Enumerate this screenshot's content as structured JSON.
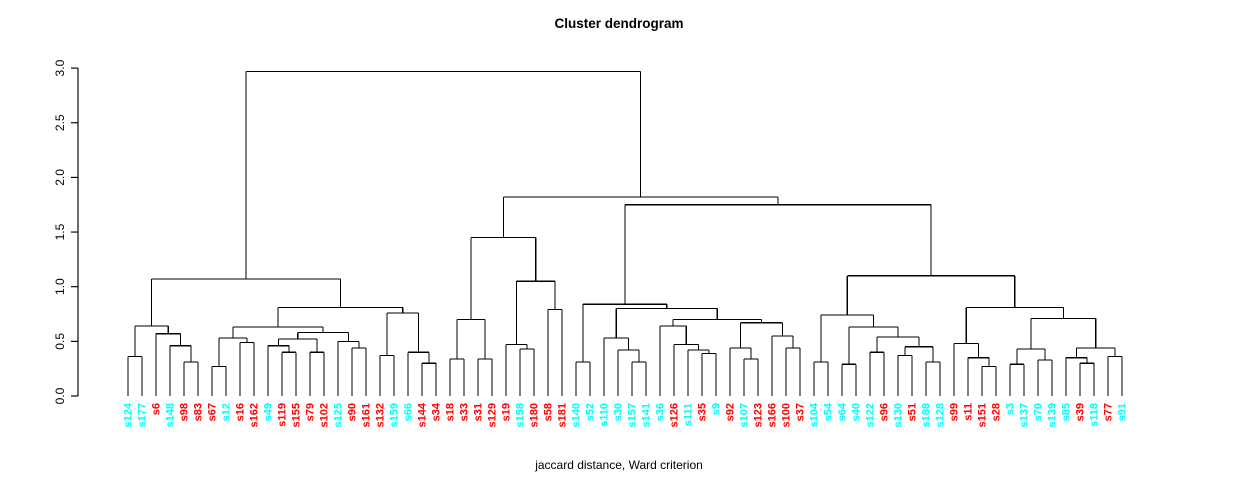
{
  "title": "Cluster dendrogram",
  "xlabel": "jaccard distance, Ward criterion",
  "colors": {
    "red": "#FF0000",
    "cyan": "#00FFFF",
    "line": "#000000",
    "background": "#FFFFFF"
  },
  "y_axis": {
    "tick_labels": [
      "0.0",
      "0.5",
      "1.0",
      "1.5",
      "2.0",
      "2.5",
      "3.0"
    ],
    "tick_values": [
      0,
      0.5,
      1.0,
      1.5,
      2.0,
      2.5,
      3.0
    ],
    "range": [
      0,
      3.0
    ]
  },
  "chart_data": {
    "type": "dendrogram",
    "title": "Cluster dendrogram",
    "xlabel": "jaccard distance, Ward criterion",
    "ylim": [
      0,
      3.0
    ],
    "root_height": 2.97,
    "grid": false,
    "leaf_count": 72,
    "leaves": [
      {
        "label": "s124",
        "color": "cyan"
      },
      {
        "label": "s177",
        "color": "cyan"
      },
      {
        "label": "s6",
        "color": "red"
      },
      {
        "label": "s148",
        "color": "cyan"
      },
      {
        "label": "s98",
        "color": "red"
      },
      {
        "label": "s83",
        "color": "red"
      },
      {
        "label": "s67",
        "color": "red"
      },
      {
        "label": "s12",
        "color": "cyan"
      },
      {
        "label": "s16",
        "color": "red"
      },
      {
        "label": "s162",
        "color": "red"
      },
      {
        "label": "s49",
        "color": "cyan"
      },
      {
        "label": "s119",
        "color": "red"
      },
      {
        "label": "s155",
        "color": "red"
      },
      {
        "label": "s79",
        "color": "red"
      },
      {
        "label": "s102",
        "color": "red"
      },
      {
        "label": "s125",
        "color": "cyan"
      },
      {
        "label": "s90",
        "color": "red"
      },
      {
        "label": "s161",
        "color": "red"
      },
      {
        "label": "s132",
        "color": "red"
      },
      {
        "label": "s159",
        "color": "cyan"
      },
      {
        "label": "s66",
        "color": "cyan"
      },
      {
        "label": "s144",
        "color": "red"
      },
      {
        "label": "s34",
        "color": "red"
      },
      {
        "label": "s18",
        "color": "red"
      },
      {
        "label": "s33",
        "color": "red"
      },
      {
        "label": "s31",
        "color": "red"
      },
      {
        "label": "s129",
        "color": "red"
      },
      {
        "label": "s19",
        "color": "red"
      },
      {
        "label": "s158",
        "color": "cyan"
      },
      {
        "label": "s180",
        "color": "red"
      },
      {
        "label": "s58",
        "color": "red"
      },
      {
        "label": "s181",
        "color": "red"
      },
      {
        "label": "s140",
        "color": "cyan"
      },
      {
        "label": "s52",
        "color": "cyan"
      },
      {
        "label": "s110",
        "color": "cyan"
      },
      {
        "label": "s30",
        "color": "cyan"
      },
      {
        "label": "s157",
        "color": "cyan"
      },
      {
        "label": "s141",
        "color": "cyan"
      },
      {
        "label": "s36",
        "color": "cyan"
      },
      {
        "label": "s126",
        "color": "red"
      },
      {
        "label": "s111",
        "color": "cyan"
      },
      {
        "label": "s35",
        "color": "red"
      },
      {
        "label": "s9",
        "color": "cyan"
      },
      {
        "label": "s92",
        "color": "red"
      },
      {
        "label": "s107",
        "color": "cyan"
      },
      {
        "label": "s123",
        "color": "red"
      },
      {
        "label": "s166",
        "color": "red"
      },
      {
        "label": "s100",
        "color": "red"
      },
      {
        "label": "s37",
        "color": "red"
      },
      {
        "label": "s104",
        "color": "cyan"
      },
      {
        "label": "s54",
        "color": "cyan"
      },
      {
        "label": "s64",
        "color": "cyan"
      },
      {
        "label": "s40",
        "color": "cyan"
      },
      {
        "label": "s122",
        "color": "cyan"
      },
      {
        "label": "s96",
        "color": "red"
      },
      {
        "label": "s130",
        "color": "cyan"
      },
      {
        "label": "s51",
        "color": "red"
      },
      {
        "label": "s188",
        "color": "cyan"
      },
      {
        "label": "s128",
        "color": "cyan"
      },
      {
        "label": "s99",
        "color": "red"
      },
      {
        "label": "s11",
        "color": "red"
      },
      {
        "label": "s151",
        "color": "red"
      },
      {
        "label": "s28",
        "color": "red"
      },
      {
        "label": "s3",
        "color": "cyan"
      },
      {
        "label": "s137",
        "color": "cyan"
      },
      {
        "label": "s70",
        "color": "cyan"
      },
      {
        "label": "s139",
        "color": "cyan"
      },
      {
        "label": "s85",
        "color": "cyan"
      },
      {
        "label": "s39",
        "color": "red"
      },
      {
        "label": "s118",
        "color": "cyan"
      },
      {
        "label": "s77",
        "color": "red"
      },
      {
        "label": "s91",
        "color": "cyan"
      }
    ],
    "tree": [
      2.97,
      [
        1.07,
        [
          0.64,
          [
            0.36,
            "s124",
            "s177"
          ],
          [
            0.57,
            "s6",
            [
              0.46,
              "s148",
              [
                0.31,
                "s98",
                "s83"
              ]
            ]
          ]
        ],
        [
          0.81,
          [
            0.63,
            [
              0.53,
              [
                0.27,
                "s67",
                "s12"
              ],
              [
                0.49,
                "s16",
                "s162"
              ]
            ],
            [
              0.58,
              [
                0.52,
                [
                  0.46,
                  "s49",
                  [
                    0.4,
                    "s119",
                    "s155"
                  ]
                ],
                [
                  0.4,
                  "s79",
                  "s102"
                ]
              ],
              [
                0.5,
                "s125",
                [
                  0.44,
                  "s90",
                  "s161"
                ]
              ]
            ]
          ],
          [
            0.76,
            [
              0.37,
              "s132",
              "s159"
            ],
            [
              0.4,
              "s66",
              [
                0.3,
                "s144",
                "s34"
              ]
            ]
          ]
        ]
      ],
      [
        1.82,
        [
          1.45,
          [
            0.7,
            [
              0.34,
              "s18",
              "s33"
            ],
            [
              0.34,
              "s31",
              "s129"
            ]
          ],
          [
            1.05,
            [
              0.47,
              "s19",
              [
                0.43,
                "s158",
                "s180"
              ]
            ],
            [
              0.79,
              "s58",
              "s181"
            ]
          ]
        ],
        [
          1.75,
          [
            0.84,
            [
              0.31,
              "s140",
              "s52"
            ],
            [
              0.8,
              [
                0.53,
                "s110",
                [
                  0.42,
                  "s30",
                  [
                    0.31,
                    "s157",
                    "s141"
                  ]
                ]
              ],
              [
                0.7,
                [
                  0.64,
                  "s36",
                  [
                    0.47,
                    "s126",
                    [
                      0.42,
                      "s111",
                      [
                        0.39,
                        "s35",
                        "s9"
                      ]
                    ]
                  ]
                ],
                [
                  0.67,
                  [
                    0.44,
                    "s92",
                    [
                      0.34,
                      "s107",
                      "s123"
                    ]
                  ],
                  [
                    0.55,
                    "s166",
                    [
                      0.44,
                      "s100",
                      "s37"
                    ]
                  ]
                ]
              ]
            ]
          ],
          [
            1.1,
            [
              0.74,
              [
                0.31,
                "s104",
                "s54"
              ],
              [
                0.63,
                [
                  0.29,
                  "s64",
                  "s40"
                ],
                [
                  0.54,
                  [
                    0.4,
                    "s122",
                    "s96"
                  ],
                  [
                    0.45,
                    [
                      0.37,
                      "s130",
                      "s51"
                    ],
                    [
                      0.31,
                      "s188",
                      "s128"
                    ]
                  ]
                ]
              ]
            ],
            [
              0.81,
              [
                0.48,
                "s99",
                [
                  0.35,
                  "s11",
                  [
                    0.27,
                    "s151",
                    "s28"
                  ]
                ]
              ],
              [
                0.71,
                [
                  0.43,
                  [
                    0.29,
                    "s3",
                    "s137"
                  ],
                  [
                    0.33,
                    "s70",
                    "s139"
                  ]
                ],
                [
                  0.44,
                  [
                    0.35,
                    "s85",
                    [
                      0.3,
                      "s39",
                      "s118"
                    ]
                  ],
                  [
                    0.36,
                    "s77",
                    "s91"
                  ]
                ]
              ]
            ]
          ]
        ]
      ]
    ]
  }
}
